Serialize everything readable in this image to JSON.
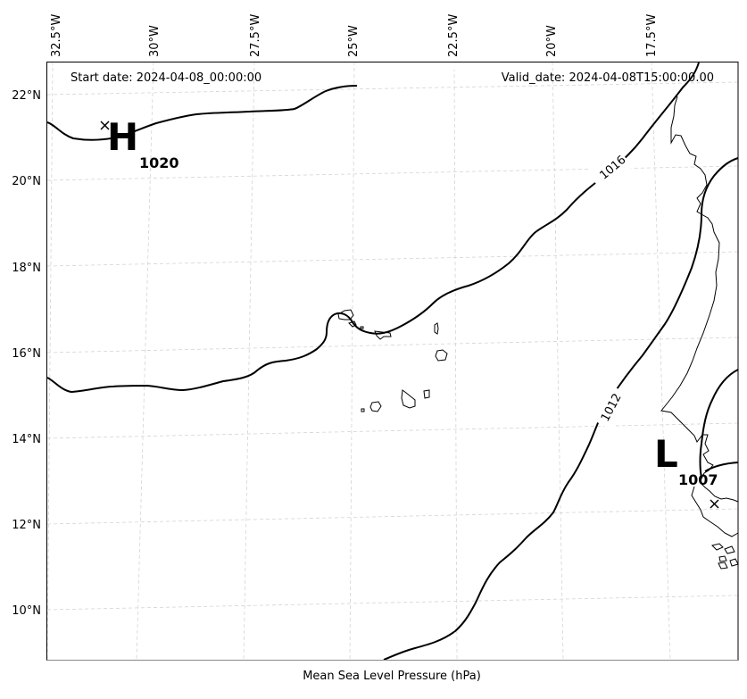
{
  "header": {
    "start_date": "Start date: 2024-04-08_00:00:00",
    "valid_date": "Valid_date: 2024-04-08T15:00:00.00"
  },
  "footer": {
    "variable_label": "Mean Sea Level Pressure (hPa)"
  },
  "axes": {
    "lon_labels": [
      "32.5°W",
      "30°W",
      "27.5°W",
      "25°W",
      "22.5°W",
      "20°W",
      "17.5°W"
    ],
    "lat_labels": [
      "22°N",
      "20°N",
      "18°N",
      "16°N",
      "14°N",
      "12°N",
      "10°N"
    ]
  },
  "isobars": [
    {
      "value": "1016"
    },
    {
      "value": "1012"
    }
  ],
  "pressure_centers": {
    "high": {
      "letter": "H",
      "value": "1020"
    },
    "low": {
      "letter": "L",
      "value": "1007"
    }
  },
  "colors": {
    "isobar": "#000000",
    "grid": "#d4d4d4",
    "background": "#ffffff"
  }
}
